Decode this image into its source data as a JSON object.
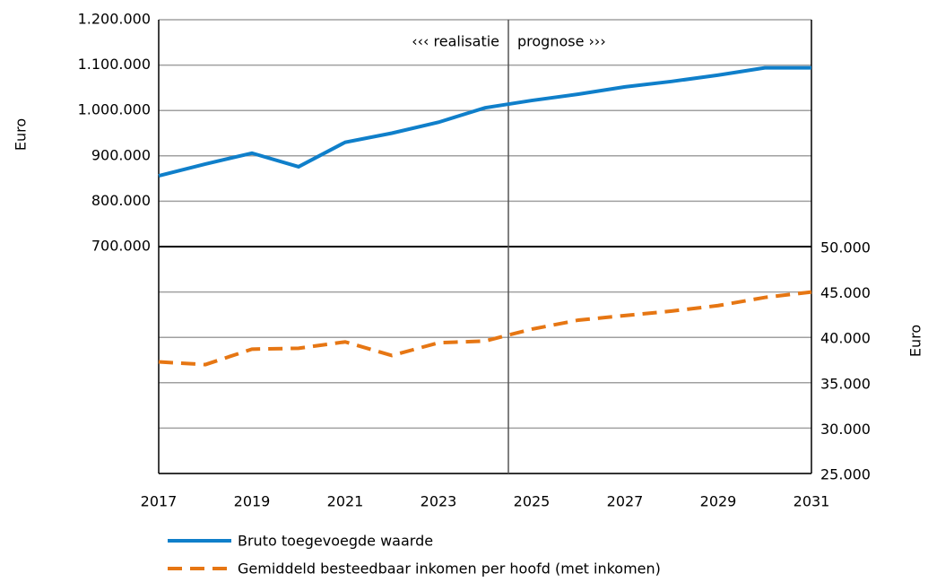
{
  "chart_data": {
    "type": "line",
    "x": [
      2017,
      2018,
      2019,
      2020,
      2021,
      2022,
      2023,
      2024,
      2025,
      2026,
      2027,
      2028,
      2029,
      2030,
      2031
    ],
    "series": [
      {
        "name": "Bruto toegevoegde waarde",
        "color": "#0f7fca",
        "axis": "y",
        "values": [
          856000,
          882000,
          906000,
          876000,
          930000,
          950000,
          974000,
          1006000,
          1022000,
          1036000,
          1052000,
          1064000,
          1078000,
          1094000,
          1094000
        ]
      },
      {
        "name": "Gemiddeld besteedbaar inkomen per hoofd (met inkomen)",
        "color": "#e67613",
        "axis": "y2",
        "dashed": true,
        "values": [
          37300,
          37000,
          38700,
          38800,
          39500,
          38000,
          39400,
          39600,
          40900,
          41900,
          42400,
          42900,
          43500,
          44400,
          45000
        ]
      }
    ],
    "ylabel": "Euro",
    "y2label": "Euro",
    "xlim": [
      2017,
      2031
    ],
    "xticks": [
      2017,
      2019,
      2021,
      2023,
      2025,
      2027,
      2029,
      2031
    ],
    "ylim": [
      200000,
      1200000
    ],
    "yticks": [
      {
        "value": 700000,
        "label": "700.000"
      },
      {
        "value": 800000,
        "label": "800.000"
      },
      {
        "value": 900000,
        "label": "900.000"
      },
      {
        "value": 1000000,
        "label": "1.000.000"
      },
      {
        "value": 1100000,
        "label": "1.100.000"
      },
      {
        "value": 1200000,
        "label": "1.200.000"
      }
    ],
    "y2lim": [
      25000,
      75000
    ],
    "y2ticks": [
      {
        "value": 25000,
        "label": "25.000"
      },
      {
        "value": 30000,
        "label": "30.000"
      },
      {
        "value": 35000,
        "label": "35.000"
      },
      {
        "value": 40000,
        "label": "40.000"
      },
      {
        "value": 45000,
        "label": "45.000"
      },
      {
        "value": 50000,
        "label": "50.000"
      }
    ],
    "grid": true,
    "divider": {
      "x": 2024.5,
      "left_label": "‹‹‹ realisatie",
      "right_label": "prognose ›››"
    }
  }
}
